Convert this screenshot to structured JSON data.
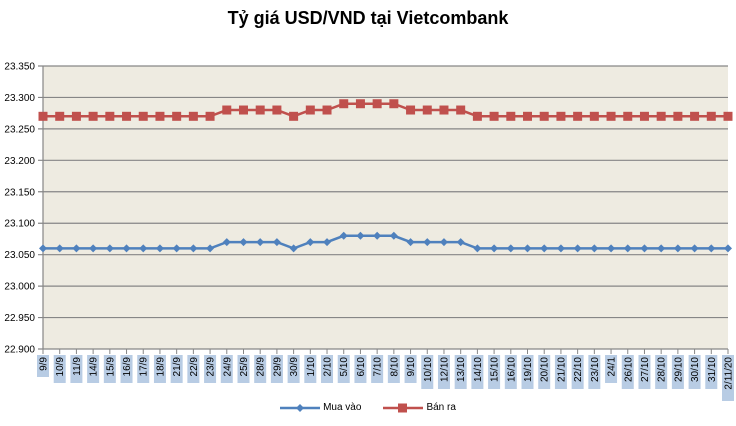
{
  "chart_data": {
    "type": "line",
    "title": "Tỷ giá USD/VND tại Vietcombank",
    "xlabel": "",
    "ylabel": "",
    "ylim": [
      22900,
      23350
    ],
    "yticks": [
      22900,
      22950,
      23000,
      23050,
      23100,
      23150,
      23200,
      23250,
      23300,
      23350
    ],
    "ytick_labels": [
      "22.900",
      "22.950",
      "23.000",
      "23.050",
      "23.100",
      "23.150",
      "23.200",
      "23.250",
      "23.300",
      "23.350"
    ],
    "grid": true,
    "legend_position": "bottom",
    "categories": [
      "9/9",
      "10/9",
      "11/9",
      "14/9",
      "15/9",
      "16/9",
      "17/9",
      "18/9",
      "21/9",
      "22/9",
      "23/9",
      "24/9",
      "25/9",
      "28/9",
      "29/9",
      "30/9",
      "1/10",
      "2/10",
      "5/10",
      "6/10",
      "7/10",
      "8/10",
      "9/10",
      "10/10",
      "12/10",
      "13/10",
      "14/10",
      "15/10",
      "16/10",
      "19/10",
      "20/10",
      "21/10",
      "22/10",
      "23/10",
      "24/1",
      "26/10",
      "27/10",
      "28/10",
      "29/10",
      "30/10",
      "31/10",
      "2/11/20"
    ],
    "series": [
      {
        "name": "Mua vào",
        "color": "#4F81BD",
        "marker": "diamond",
        "values": [
          23060,
          23060,
          23060,
          23060,
          23060,
          23060,
          23060,
          23060,
          23060,
          23060,
          23060,
          23070,
          23070,
          23070,
          23070,
          23060,
          23070,
          23070,
          23080,
          23080,
          23080,
          23080,
          23070,
          23070,
          23070,
          23070,
          23060,
          23060,
          23060,
          23060,
          23060,
          23060,
          23060,
          23060,
          23060,
          23060,
          23060,
          23060,
          23060,
          23060,
          23060,
          23060
        ]
      },
      {
        "name": "Bán ra",
        "color": "#C0504D",
        "marker": "square",
        "values": [
          23270,
          23270,
          23270,
          23270,
          23270,
          23270,
          23270,
          23270,
          23270,
          23270,
          23270,
          23280,
          23280,
          23280,
          23280,
          23270,
          23280,
          23280,
          23290,
          23290,
          23290,
          23290,
          23280,
          23280,
          23280,
          23280,
          23270,
          23270,
          23270,
          23270,
          23270,
          23270,
          23270,
          23270,
          23270,
          23270,
          23270,
          23270,
          23270,
          23270,
          23270,
          23270
        ]
      }
    ]
  },
  "colors": {
    "plot_bg": "#EEEBE1",
    "grid": "#868686",
    "label_bg": "#B8CCE4"
  }
}
